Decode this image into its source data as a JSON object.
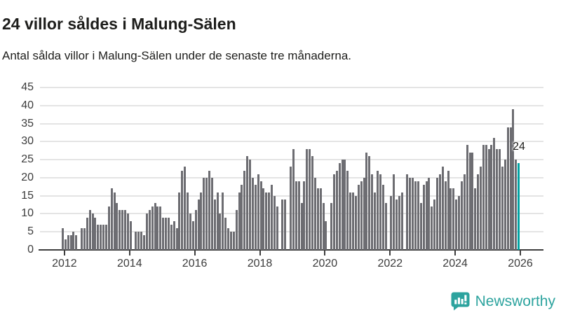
{
  "header": {
    "title": "24 villor såldes i Malung-Sälen",
    "subtitle": "Antal sålda villor i Malung-Sälen under de senaste tre månaderna."
  },
  "chart_data": {
    "type": "bar",
    "title": "24 villor såldes i Malung-Sälen",
    "subtitle": "Antal sålda villor i Malung-Sälen under de senaste tre månaderna.",
    "xlabel": "",
    "ylabel": "",
    "ylim": [
      0,
      45
    ],
    "grid": true,
    "legend": false,
    "frequency": "monthly",
    "x_start": "2011-12",
    "y_ticks": [
      0,
      5,
      10,
      15,
      20,
      25,
      30,
      35,
      40,
      45
    ],
    "x_tick_labels": [
      "2012",
      "2014",
      "2016",
      "2018",
      "2020",
      "2022",
      "2024",
      "2026"
    ],
    "x_tick_year_step": 2,
    "values": [
      6,
      3,
      4,
      4,
      5,
      4,
      0,
      6,
      6,
      9,
      11,
      10,
      9,
      7,
      7,
      7,
      7,
      12,
      17,
      16,
      13,
      11,
      11,
      11,
      10,
      8,
      0,
      5,
      5,
      5,
      4,
      10,
      11,
      12,
      13,
      12,
      12,
      9,
      9,
      9,
      7,
      8,
      6,
      16,
      22,
      23,
      16,
      10,
      8,
      11,
      14,
      16,
      20,
      20,
      22,
      20,
      14,
      16,
      10,
      16,
      9,
      6,
      5,
      5,
      11,
      16,
      18,
      22,
      26,
      25,
      20,
      18,
      21,
      19,
      17,
      16,
      16,
      18,
      15,
      12,
      0,
      14,
      14,
      0,
      23,
      28,
      19,
      19,
      13,
      19,
      28,
      28,
      26,
      20,
      17,
      17,
      13,
      8,
      0,
      13,
      21,
      22,
      24,
      25,
      25,
      22,
      16,
      16,
      15,
      18,
      19,
      20,
      27,
      26,
      21,
      16,
      22,
      21,
      18,
      13,
      0,
      15,
      21,
      14,
      15,
      16,
      0,
      21,
      20,
      20,
      19,
      19,
      13,
      18,
      19,
      20,
      12,
      14,
      20,
      21,
      23,
      19,
      22,
      17,
      17,
      14,
      15,
      19,
      21,
      29,
      27,
      27,
      17,
      21,
      23,
      29,
      29,
      28,
      29,
      31,
      28,
      28,
      23,
      25,
      34,
      34,
      39,
      25,
      24
    ],
    "bar_color": "#6d6d72",
    "highlight": {
      "position": "last",
      "value": 24,
      "label": "24",
      "color": "#00a3a3"
    },
    "gridline_color": "#e4e4e4",
    "axis_color": "#3d3d3d"
  },
  "footer": {
    "brand": "Newsworthy",
    "brand_color": "#2ca39e",
    "logo_icon": "bar-chart-speech-bubble-icon"
  }
}
